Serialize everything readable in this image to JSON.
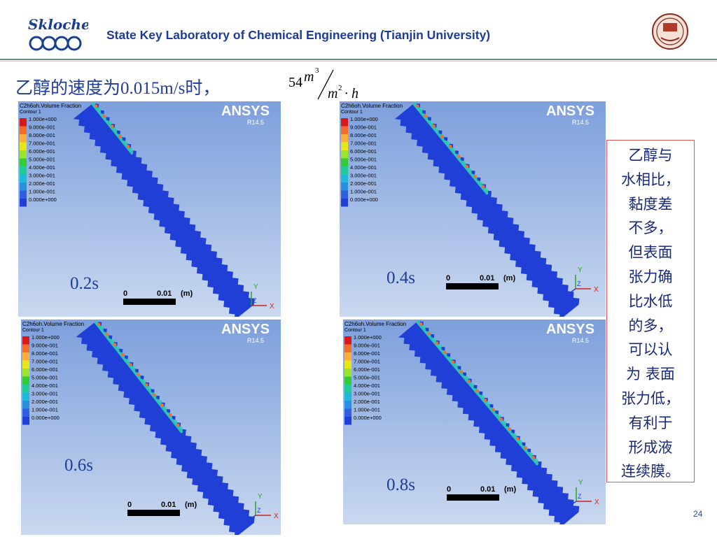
{
  "header": {
    "logo_text": "Skloche",
    "title": "State Key Laboratory of Chemical Engineering (Tianjin University)",
    "seal_text": "天津大学"
  },
  "slide": {
    "heading_prefix": "乙醇的速度为0.015m/s时，",
    "formula": {
      "coef": "54",
      "num": "m",
      "num_exp": "3",
      "den": "m",
      "den_exp": "2",
      "den_tail": "· h"
    }
  },
  "panels": [
    {
      "time": "0.2s",
      "title": "C2h6oh.Volume Fraction",
      "contour": "Contour 1",
      "legend": [
        "1.000e+000",
        "9.000e-001",
        "8.000e-001",
        "7.000e-001",
        "6.000e-001",
        "5.000e-001",
        "4.000e-001",
        "3.000e-001",
        "2.000e-001",
        "1.000e-001",
        "0.000e+000"
      ],
      "brand": "ANSYS",
      "version": "R14.5",
      "scale_zero": "0",
      "scale_value": "0.01",
      "scale_unit": "(m)",
      "axis_y": "Y",
      "axis_x": "X",
      "axis_z": "Z"
    },
    {
      "time": "0.4s",
      "title": "C2h6oh.Volume Fraction",
      "contour": "Contour 1",
      "legend": [
        "1.000e+000",
        "9.000e-001",
        "8.000e-001",
        "7.000e-001",
        "6.000e-001",
        "5.000e-001",
        "4.000e-001",
        "3.000e-001",
        "2.000e-001",
        "1.000e-001",
        "0.000e+000"
      ],
      "brand": "ANSYS",
      "version": "R14.5",
      "scale_zero": "0",
      "scale_value": "0.01",
      "scale_unit": "(m)",
      "axis_y": "Y",
      "axis_x": "X",
      "axis_z": "Z"
    },
    {
      "time": "0.6s",
      "title": "C2h6oh.Volume Fraction",
      "contour": "Contour 1",
      "legend": [
        "1.000e+000",
        "9.000e-001",
        "8.000e-001",
        "7.000e-001",
        "6.000e-001",
        "5.000e-001",
        "4.000e-001",
        "3.000e-001",
        "2.000e-001",
        "1.000e-001",
        "0.000e+000"
      ],
      "brand": "ANSYS",
      "version": "R14.5",
      "scale_zero": "0",
      "scale_value": "0.01",
      "scale_unit": "(m)",
      "axis_y": "Y",
      "axis_x": "X",
      "axis_z": "Z"
    },
    {
      "time": "0.8s",
      "title": "C2h6oh.Volume Fraction",
      "contour": "Contour 1",
      "legend": [
        "1.000e+000",
        "9.000e-001",
        "8.000e-001",
        "7.000e-001",
        "6.000e-001",
        "5.000e-001",
        "4.000e-001",
        "3.000e-001",
        "2.000e-001",
        "1.000e-001",
        "0.000e+000"
      ],
      "brand": "ANSYS",
      "version": "R14.5",
      "scale_zero": "0",
      "scale_value": "0.01",
      "scale_unit": "(m)",
      "axis_y": "Y",
      "axis_x": "X",
      "axis_z": "Z"
    }
  ],
  "legend_colors": [
    "#d7191c",
    "#f46d2b",
    "#fdae3a",
    "#e6e619",
    "#9be52b",
    "#33cc33",
    "#22cc99",
    "#1fb8d8",
    "#2b8fe0",
    "#2f5fe0",
    "#1f3fd6"
  ],
  "note": "乙醇与\n水相比，\n黏度差\n不多，\n但表面\n张力确\n比水低\n的多，\n可以认\n为 表面\n张力低，\n有利于\n形成液\n连续膜。",
  "page_number": "24"
}
